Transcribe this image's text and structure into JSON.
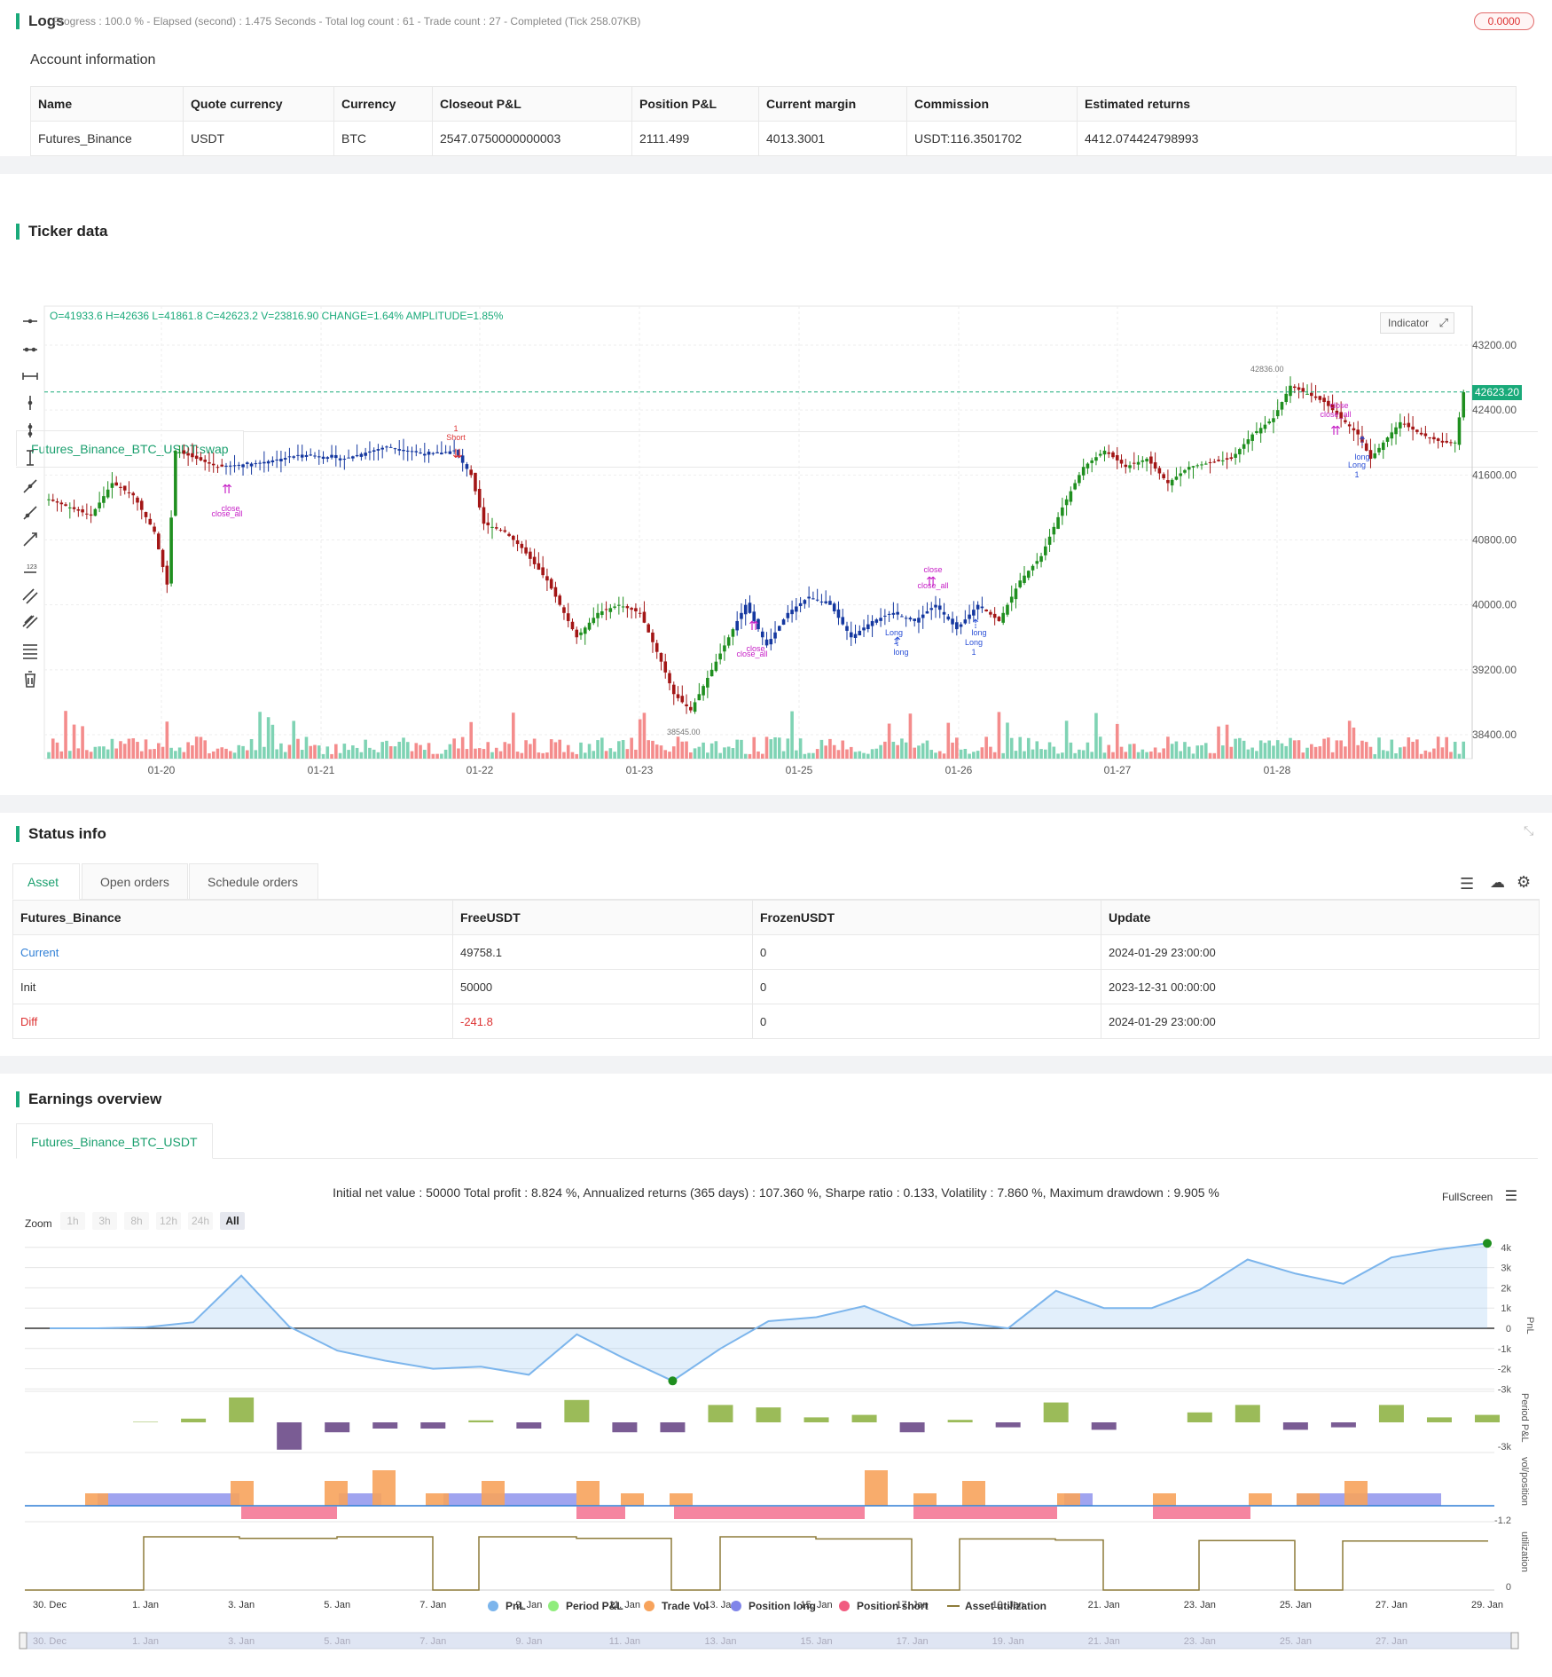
{
  "logs": {
    "title": "Logs",
    "summary": "Progress : 100.0 % - Elapsed (second) : 1.475  Seconds - Total log count : 61 - Trade count : 27 - Completed (Tick 258.07KB)",
    "badge": "0.0000"
  },
  "account": {
    "heading": "Account information",
    "columns": [
      "Name",
      "Quote currency",
      "Currency",
      "Closeout P&L",
      "Position P&L",
      "Current margin",
      "Commission",
      "Estimated returns"
    ],
    "row": [
      "Futures_Binance",
      "USDT",
      "BTC",
      "2547.0750000000003",
      "2111.499",
      "4013.3001",
      "USDT:116.3501702",
      "4412.074424798993"
    ]
  },
  "ticker": {
    "title": "Ticker data",
    "tab": "Futures_Binance_BTC_USDT:swap",
    "ohlc": "O=41933.6 H=42636 L=41861.8 C=42623.2 V=23816.90 CHANGE=1.64% AMPLITUDE=1.85%",
    "indicator_label": "Indicator",
    "price_label": "42623.20",
    "high_marker": "42836.00",
    "low_marker": "38545.00",
    "annotations": {
      "short_1": "1",
      "short_label": "Short",
      "close": "close",
      "close_all": "close_all",
      "long": "long",
      "long_cap": "Long",
      "one": "1"
    }
  },
  "chart_data": {
    "type": "candlestick",
    "y_ticks": [
      43200,
      42400,
      41600,
      40800,
      40000,
      39200,
      38400
    ],
    "y_tick_labels": [
      "43200.00",
      "42400.00",
      "41600.00",
      "40800.00",
      "40000.00",
      "39200.00",
      "38400.00"
    ],
    "x_tick_labels": [
      "01-20",
      "01-21",
      "01-22",
      "01-23",
      "01-25",
      "01-26",
      "01-27",
      "01-28"
    ],
    "ylim": [
      38200,
      43600
    ],
    "last_price": 42623.2,
    "colors": {
      "up": "#1f8f1f",
      "down": "#a31616",
      "neutral": "#1538a0",
      "vol_up": "#7fd3b4",
      "vol_down": "#f48c8c",
      "last": "#1aaa7a"
    }
  },
  "status": {
    "title": "Status info",
    "tabs": [
      "Asset",
      "Open orders",
      "Schedule orders"
    ],
    "columns": [
      "Futures_Binance",
      "FreeUSDT",
      "FrozenUSDT",
      "Update"
    ],
    "rows": [
      [
        "Current",
        "49758.1",
        "0",
        "2024-01-29 23:00:00"
      ],
      [
        "Init",
        "50000",
        "0",
        "2023-12-31 00:00:00"
      ],
      [
        "Diff",
        "-241.8",
        "0",
        "2024-01-29 23:00:00"
      ]
    ]
  },
  "earnings": {
    "title": "Earnings overview",
    "tab": "Futures_Binance_BTC_USDT",
    "summary": "Initial net value : 50000  Total profit : 8.824 %, Annualized returns (365 days) : 107.360 %, Sharpe ratio : 0.133, Volatility : 7.860 %, Maximum drawdown : 9.905 %",
    "fullscreen": "FullScreen",
    "zoom_label": "Zoom",
    "zoom_buttons": [
      "1h",
      "3h",
      "8h",
      "12h",
      "24h",
      "All"
    ],
    "pnl_ticks": [
      "4k",
      "3k",
      "2k",
      "1k",
      "0",
      "-1k",
      "-2k",
      "-3k"
    ],
    "axis_titles": [
      "PnL",
      "Period P&L",
      "vol/position",
      "utilization"
    ],
    "period_tick": "-3k",
    "vol_tick": "-1.2",
    "util_tick": "0",
    "x_labels": [
      "30. Dec",
      "1. Jan",
      "3. Jan",
      "5. Jan",
      "7. Jan",
      "9. Jan",
      "11. Jan",
      "13. Jan",
      "15. Jan",
      "17. Jan",
      "19. Jan",
      "21. Jan",
      "23. Jan",
      "25. Jan",
      "27. Jan",
      "29. Jan"
    ],
    "nav_labels": [
      "30. Dec",
      "1. Jan",
      "3. Jan",
      "5. Jan",
      "7. Jan",
      "9. Jan",
      "11. Jan",
      "13. Jan",
      "15. Jan",
      "17. Jan",
      "19. Jan",
      "21. Jan",
      "23. Jan",
      "25. Jan",
      "27. Jan"
    ],
    "legend": [
      {
        "name": "PnL",
        "color": "#7cb5ec"
      },
      {
        "name": "Period P&L",
        "color": "#90ed7d"
      },
      {
        "name": "Trade Vol",
        "color": "#f7a35c"
      },
      {
        "name": "Position long",
        "color": "#8085e9"
      },
      {
        "name": "Position short",
        "color": "#f15c80"
      },
      {
        "name": "Asset utilization",
        "color": "#8d7b3a"
      }
    ],
    "pnl_series": [
      0,
      0,
      50,
      300,
      2600,
      80,
      -1100,
      -1600,
      -2000,
      -1900,
      -2300,
      -300,
      -1500,
      -2600,
      -1000,
      350,
      550,
      1100,
      150,
      300,
      0,
      1850,
      1000,
      1000,
      1900,
      3400,
      2700,
      2200,
      3500,
      3900,
      4200
    ],
    "period_series": [
      0,
      0,
      20,
      150,
      1000,
      -1100,
      -400,
      -250,
      -250,
      80,
      -250,
      900,
      -400,
      -400,
      700,
      600,
      200,
      300,
      -400,
      100,
      -200,
      800,
      -300,
      0,
      400,
      700,
      -300,
      -200,
      700,
      200,
      300
    ]
  }
}
